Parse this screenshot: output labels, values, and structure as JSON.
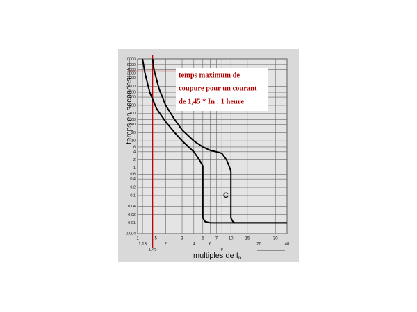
{
  "chart_data": {
    "type": "line",
    "ylabel": "temps en secondes",
    "xlabel": "multiples de I",
    "xlabel_subscript": "n",
    "curve_label": "C",
    "annotation": [
      "temps maximum de",
      "coupure pour un courant",
      "de 1,45 * In : 1 heure"
    ],
    "xscale": "log",
    "yscale": "log",
    "grid": true,
    "xlim": [
      1,
      40
    ],
    "ylim": [
      0.004,
      10000
    ],
    "xticks": [
      1,
      {
        "value": 1.5,
        "label": "1,5"
      },
      2,
      3,
      4,
      5,
      6,
      7,
      8,
      10,
      15,
      20,
      30,
      40,
      {
        "value": 1.13,
        "label": "1,13"
      },
      {
        "value": 1.45,
        "label": "1,45",
        "color": "#c00000"
      }
    ],
    "yticks": [
      10000,
      6000,
      4000,
      {
        "value": 3600,
        "label": "3600",
        "color": "#c00000"
      },
      2000,
      1000,
      600,
      400,
      200,
      100,
      60,
      40,
      20,
      10,
      6,
      4,
      2,
      1,
      {
        "value": 0.6,
        "label": "0,6"
      },
      {
        "value": 0.4,
        "label": "0,4"
      },
      {
        "value": 0.2,
        "label": "0,2"
      },
      {
        "value": 0.1,
        "label": "0,1"
      },
      {
        "value": 0.04,
        "label": "0,04"
      },
      {
        "value": 0.02,
        "label": "0,02"
      },
      {
        "value": 0.01,
        "label": "0,01"
      },
      {
        "value": 0.004,
        "label": "0,004"
      }
    ],
    "series": [
      {
        "color": "#000000",
        "x": [
          1.13,
          1.2,
          1.35,
          1.6,
          2,
          2.5,
          3,
          4,
          4.6,
          5,
          5,
          5.3,
          6,
          40
        ],
        "values": [
          10000,
          3000,
          600,
          150,
          50,
          20,
          10,
          4,
          2,
          1.2,
          0.015,
          0.011,
          0.01,
          0.01
        ]
      },
      {
        "color": "#000000",
        "x": [
          1.45,
          1.5,
          1.7,
          2,
          2.5,
          3,
          4,
          5,
          6,
          7,
          8,
          9,
          10,
          10,
          10.5,
          11,
          40
        ],
        "values": [
          10000,
          4000,
          800,
          200,
          60,
          25,
          10,
          6,
          4.5,
          4,
          3.5,
          2,
          0.8,
          0.015,
          0.011,
          0.01,
          0.01
        ]
      }
    ]
  }
}
